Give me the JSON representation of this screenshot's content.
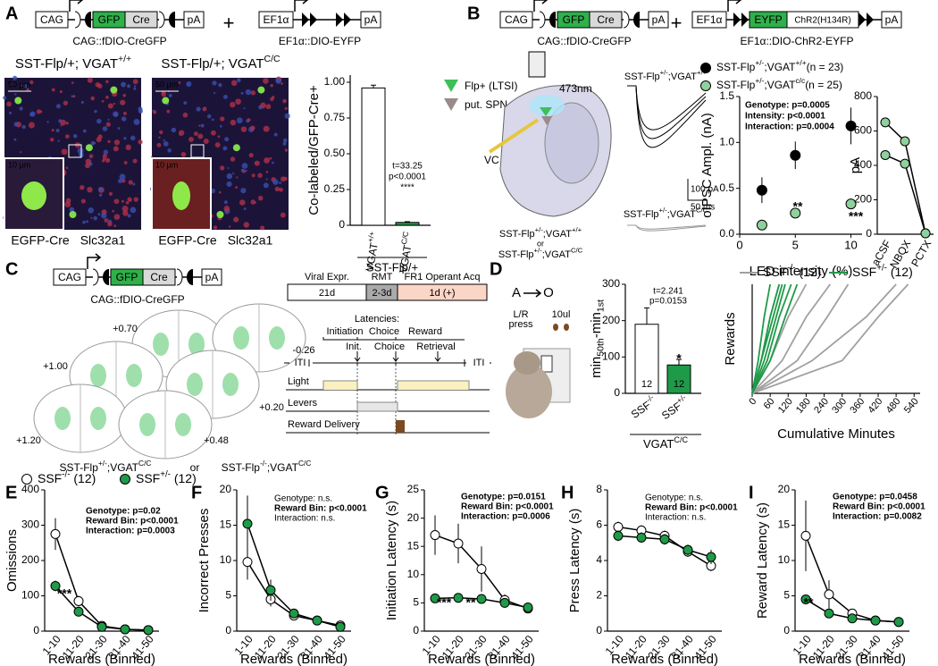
{
  "panels": {
    "A": {
      "letter": "A",
      "constructs": [
        {
          "parts": [
            "CAG",
            "GFP",
            "Cre",
            "pA"
          ],
          "caption": "CAG::fDIO-CreGFP"
        },
        {
          "parts": [
            "EF1α",
            "pA"
          ],
          "caption": "EF1α::DIO-EYFP"
        }
      ],
      "plus": "+",
      "images": [
        {
          "title": [
            "SST-Flp/+; VGAT",
            {
              "sup": "+/+"
            }
          ],
          "scale": "50 µm",
          "inset_scale": "10 µm",
          "stains": [
            "EGFP-Cre",
            "Slc32a1"
          ]
        },
        {
          "title": [
            "SST-Flp/+; VGAT",
            {
              "sup": "C/C"
            }
          ],
          "scale": "50 µm",
          "inset_scale": "10 µm",
          "stains": [
            "EGFP-Cre",
            "Slc32a1"
          ]
        }
      ]
    },
    "B": {
      "letter": "B",
      "constructs": [
        {
          "parts": [
            "CAG",
            "GFP",
            "Cre",
            "pA"
          ],
          "caption": "CAG::fDIO-CreGFP"
        },
        {
          "parts": [
            "EF1α",
            "EYFP",
            "ChR2(H134R)",
            "pA"
          ],
          "caption": "EF1α::DIO-ChR2-EYFP"
        }
      ],
      "plus": "+",
      "legend": [
        "Flp+ (LTSI)",
        "put. SPN"
      ],
      "laser": "473nm",
      "clamp": "VC",
      "genotypes": [
        [
          "SST-Flp",
          {
            "sup": "+/-"
          },
          ";VGAT",
          {
            "sup": "+/+"
          }
        ],
        "or",
        [
          "SST-Flp",
          {
            "sup": "+/-"
          },
          ";VGAT",
          {
            "sup": "C/C"
          }
        ]
      ],
      "traces": [
        [
          "SST-Flp",
          {
            "sup": "+/-"
          },
          ";VGAT",
          {
            "sup": "+/+"
          }
        ],
        [
          "SST-Flp",
          {
            "sup": "+/-"
          },
          ";VGAT",
          {
            "sup": "C/C"
          }
        ]
      ],
      "scalebar": [
        "100 pA",
        "50 ms"
      ]
    },
    "C": {
      "letter": "C",
      "construct": {
        "parts": [
          "CAG",
          "GFP",
          "Cre",
          "pA"
        ],
        "caption": "CAG::fDIO-CreGFP"
      },
      "coordinates": [
        "+0.70",
        "-0.26",
        "+1.00",
        "+0.20",
        "+1.20",
        "+0.48"
      ],
      "genotypes": [
        [
          "SST-Flp",
          {
            "sup": "+/-"
          },
          ";VGAT",
          {
            "sup": "C/C"
          }
        ],
        "or",
        [
          "SST-Flp",
          {
            "sup": "-/-"
          },
          ";VGAT",
          {
            "sup": "C/C"
          }
        ]
      ],
      "timeline": [
        {
          "label": "Viral Expr.",
          "duration": "21d"
        },
        {
          "label": "RMT",
          "duration": "2-3d"
        },
        {
          "label": "FR1 Operant Acq",
          "duration": "1d (+)"
        }
      ],
      "latencies": {
        "title": "Latencies:",
        "names": [
          "Initiation",
          "Choice",
          "Reward"
        ],
        "events": [
          "Init.",
          "Choice",
          "Retrieval"
        ],
        "iti": [
          "ITI",
          "ITI"
        ],
        "rows": [
          "Light",
          "Levers",
          "Reward Delivery"
        ]
      }
    },
    "D": {
      "letter": "D",
      "task": {
        "from": "A",
        "to": "O",
        "press": [
          "L/R",
          "press"
        ],
        "reward": "10ul"
      }
    },
    "bottom": {
      "letters": [
        "E",
        "F",
        "G",
        "H",
        "I"
      ]
    }
  },
  "chart_data": [
    {
      "type": "bar",
      "ylabel": "Co-labeled/GFP-Cre+",
      "categories": [
        [
          "VGAT",
          {
            "sup": "+/+"
          }
        ],
        [
          "VGAT",
          {
            "sup": "C/C"
          }
        ]
      ],
      "values": [
        0.96,
        0.02
      ],
      "errors": [
        0.02,
        0.005
      ],
      "colors": [
        "#ffffff",
        "#1f9a48"
      ],
      "ylim": [
        0,
        1.05
      ],
      "yticks": [
        0,
        0.25,
        {
          "value": 0.5,
          "label": "0.50"
        },
        0.75,
        {
          "value": 1,
          "label": "1.00"
        }
      ],
      "annotations": [
        "t=33.25",
        "p<0.0001",
        "****"
      ],
      "group": "SST-Flp/+"
    },
    {
      "type": "scatter",
      "xlabel": "LED intensity (%)",
      "ylabel": "oIPSC Ampl. (nA)",
      "xlim": [
        0,
        11
      ],
      "xticks": [
        0,
        5,
        10
      ],
      "ylim": [
        0,
        1.5
      ],
      "yticks": [
        {
          "value": 0,
          "label": "0.0"
        },
        0.5,
        {
          "value": 1,
          "label": "1.0"
        },
        1.5
      ],
      "series": [
        {
          "name": [
            "SST-Flp",
            {
              "sup": "+/-"
            },
            ";VGAT",
            {
              "sup": "+/+"
            },
            "(n = 23)"
          ],
          "color": "#000000",
          "x": [
            2,
            5,
            10
          ],
          "values": [
            0.48,
            0.86,
            1.18
          ],
          "errors": [
            0.14,
            0.15,
            0.2
          ]
        },
        {
          "name": [
            "SST-Flp",
            {
              "sup": "+/-"
            },
            ";VGAT",
            {
              "sup": "c/c"
            },
            "(n = 25)"
          ],
          "color": "#8fd19e",
          "x": [
            2,
            5,
            10
          ],
          "values": [
            0.1,
            0.23,
            0.33
          ],
          "errors": [
            0.02,
            0.03,
            0.04
          ]
        }
      ],
      "annotations": [
        "Genotype: p=0.0005",
        "Intensity: p<0.0001",
        "Interaction: p=0.0004"
      ],
      "annotation_bold": [
        true,
        true,
        true
      ],
      "marks": [
        "**",
        "***"
      ]
    },
    {
      "type": "line",
      "ylabel": "pA",
      "categories": [
        "aCSF",
        "NBQX",
        "PCTX"
      ],
      "ylim": [
        0,
        800
      ],
      "yticks": [
        0,
        200,
        400,
        600,
        800
      ],
      "series": [
        {
          "color": "#8fd19e",
          "values": [
            650,
            540,
            5
          ]
        },
        {
          "color": "#8fd19e",
          "values": [
            460,
            410,
            5
          ]
        }
      ]
    },
    {
      "type": "bar",
      "ylabel": [
        "min",
        {
          "sub": "50th"
        },
        "-min",
        {
          "sub": "1st"
        }
      ],
      "categories": [
        [
          "SSF",
          {
            "sup": "-/-"
          }
        ],
        [
          "SSF",
          {
            "sup": "+/-"
          }
        ]
      ],
      "values": [
        190,
        78
      ],
      "errors": [
        45,
        15
      ],
      "colors": [
        "#ffffff",
        "#1f9a48"
      ],
      "n_labels": [
        "12",
        "12"
      ],
      "ylim": [
        0,
        300
      ],
      "yticks": [
        0,
        100,
        200,
        300
      ],
      "annotations": [
        "t=2.241",
        "p=0.0153"
      ],
      "marks": [
        "*"
      ],
      "group": [
        "VGAT",
        {
          "sup": "C/C"
        }
      ]
    },
    {
      "type": "line",
      "xlabel": "Cumulative Minutes",
      "ylabel": "Rewards",
      "xlim": [
        0,
        560
      ],
      "xticks": [
        0,
        60,
        120,
        180,
        240,
        300,
        360,
        420,
        480,
        540
      ],
      "ylim": [
        0,
        50
      ],
      "series": [
        {
          "name": [
            "SSF",
            {
              "sup": "-/-"
            },
            " (12)"
          ],
          "color": "#a0a0a0",
          "curves": [
            {
              "x": [
                0,
                30,
                60,
                90
              ],
              "values": [
                0,
                15,
                35,
                50
              ]
            },
            {
              "x": [
                0,
                60,
                120,
                180
              ],
              "values": [
                0,
                15,
                35,
                50
              ]
            },
            {
              "x": [
                0,
                100,
                180,
                260
              ],
              "values": [
                0,
                15,
                35,
                50
              ]
            },
            {
              "x": [
                0,
                150,
                250,
                320
              ],
              "values": [
                0,
                15,
                35,
                50
              ]
            },
            {
              "x": [
                0,
                200,
                380,
                480
              ],
              "values": [
                0,
                15,
                35,
                50
              ]
            },
            {
              "x": [
                0,
                300,
                420,
                520
              ],
              "values": [
                0,
                15,
                35,
                50
              ]
            }
          ]
        },
        {
          "name": [
            "SSF",
            {
              "sup": "+/-"
            },
            " (12)"
          ],
          "color": "#1f9a48",
          "curves": [
            {
              "x": [
                0,
                20,
                40,
                60
              ],
              "values": [
                0,
                15,
                35,
                50
              ]
            },
            {
              "x": [
                0,
                30,
                60,
                90
              ],
              "values": [
                0,
                15,
                35,
                50
              ]
            },
            {
              "x": [
                0,
                40,
                80,
                110
              ],
              "values": [
                0,
                15,
                35,
                50
              ]
            },
            {
              "x": [
                0,
                50,
                90,
                130
              ],
              "values": [
                0,
                15,
                35,
                50
              ]
            },
            {
              "x": [
                0,
                60,
                110,
                150
              ],
              "values": [
                0,
                15,
                35,
                50
              ]
            },
            {
              "x": [
                0,
                30,
                70,
                100
              ],
              "values": [
                0,
                15,
                35,
                50
              ]
            }
          ]
        }
      ]
    },
    {
      "type": "line",
      "ylabel": "Omissions",
      "xlabel": "Rewards (Binned)",
      "categories": [
        "1-10",
        "11-20",
        "21-30",
        "31-40",
        "41-50"
      ],
      "ylim": [
        0,
        400
      ],
      "yticks": [
        0,
        100,
        200,
        300,
        400
      ],
      "series": [
        {
          "name": [
            "SSF",
            {
              "sup": "-/-"
            },
            " (12)"
          ],
          "color": "#ffffff",
          "values": [
            275,
            85,
            15,
            5,
            3
          ],
          "errors": [
            45,
            15,
            5,
            3,
            2
          ]
        },
        {
          "name": [
            "SSF",
            {
              "sup": "+/-"
            },
            " (12)"
          ],
          "color": "#1f9a48",
          "values": [
            128,
            55,
            12,
            5,
            3
          ],
          "errors": [
            15,
            8,
            4,
            2,
            2
          ]
        }
      ],
      "annotations": [
        "Genotype: p=0.02",
        "Reward Bin: p<0.0001",
        "Interaction: p=0.0003"
      ],
      "annotation_bold": [
        true,
        true,
        true
      ],
      "marks": [
        "***"
      ]
    },
    {
      "type": "line",
      "ylabel": "Incorrect Presses",
      "xlabel": "Rewards (Binned)",
      "categories": [
        "1-10",
        "11-20",
        "21-30",
        "31-40",
        "41-50"
      ],
      "ylim": [
        0,
        20
      ],
      "yticks": [
        0,
        5,
        10,
        15,
        20
      ],
      "series": [
        {
          "color": "#ffffff",
          "values": [
            9.8,
            4.5,
            2.2,
            1.5,
            0.8
          ],
          "errors": [
            2.5,
            1,
            0.5,
            0.5,
            0.3
          ]
        },
        {
          "color": "#1f9a48",
          "values": [
            15.2,
            5.8,
            2.5,
            1.5,
            0.6
          ],
          "errors": [
            4,
            1.5,
            0.6,
            0.5,
            0.3
          ]
        }
      ],
      "annotations": [
        "Genotype: n.s.",
        "Reward Bin: p<0.0001",
        "Interaction: n.s."
      ],
      "annotation_bold": [
        false,
        true,
        false
      ]
    },
    {
      "type": "line",
      "ylabel": "Initiation Latency (s)",
      "xlabel": "Rewards (Binned)",
      "categories": [
        "1-10",
        "11-20",
        "21-30",
        "31-40",
        "41-50"
      ],
      "ylim": [
        0,
        25
      ],
      "yticks": [
        0,
        5,
        10,
        15,
        20,
        25
      ],
      "series": [
        {
          "color": "#ffffff",
          "values": [
            17,
            15.5,
            11,
            5.5,
            4
          ],
          "errors": [
            3.5,
            3.5,
            4,
            1,
            0.5
          ]
        },
        {
          "color": "#1f9a48",
          "values": [
            5.8,
            5.9,
            5.7,
            5,
            4.2
          ],
          "errors": [
            0.5,
            0.5,
            0.5,
            0.5,
            0.4
          ]
        }
      ],
      "annotations": [
        "Genotype: p=0.0151",
        "Reward Bin: p<0.0001",
        "Interaction: p=0.0006"
      ],
      "annotation_bold": [
        true,
        true,
        true
      ],
      "marks": [
        "***",
        "**"
      ]
    },
    {
      "type": "line",
      "ylabel": "Press Latency (s)",
      "xlabel": "Rewards (Binned)",
      "categories": [
        "1-10",
        "11-20",
        "21-30",
        "31-40",
        "41-50"
      ],
      "ylim": [
        0,
        8
      ],
      "yticks": [
        0,
        2,
        4,
        6,
        8
      ],
      "series": [
        {
          "color": "#ffffff",
          "values": [
            5.9,
            5.7,
            5.4,
            4.5,
            3.7
          ],
          "errors": [
            0.3,
            0.3,
            0.3,
            0.3,
            0.3
          ]
        },
        {
          "color": "#1f9a48",
          "values": [
            5.4,
            5.3,
            5.2,
            4.6,
            4.2
          ],
          "errors": [
            0.3,
            0.3,
            0.3,
            0.3,
            0.4
          ]
        }
      ],
      "annotations": [
        "Genotype: n.s.",
        "Reward Bin: p<0.0001",
        "Interaction: n.s."
      ],
      "annotation_bold": [
        false,
        true,
        false
      ]
    },
    {
      "type": "line",
      "ylabel": "Reward Latency (s)",
      "xlabel": "Rewards (Binned)",
      "categories": [
        "1-10",
        "11-20",
        "21-30",
        "31-40",
        "41-50"
      ],
      "ylim": [
        0,
        20
      ],
      "yticks": [
        0,
        5,
        10,
        15,
        20
      ],
      "series": [
        {
          "color": "#ffffff",
          "values": [
            13.5,
            5.2,
            2.5,
            1.5,
            1.3
          ],
          "errors": [
            5,
            2,
            0.5,
            0.3,
            0.2
          ]
        },
        {
          "color": "#1f9a48",
          "values": [
            4.5,
            2.5,
            1.8,
            1.5,
            1.3
          ],
          "errors": [
            0.6,
            0.4,
            0.3,
            0.2,
            0.2
          ]
        }
      ],
      "annotations": [
        "Genotype: p=0.0458",
        "Reward Bin: p<0.0001",
        "Interaction: p=0.0082"
      ],
      "annotation_bold": [
        true,
        true,
        true
      ],
      "marks": [
        "**"
      ]
    }
  ]
}
